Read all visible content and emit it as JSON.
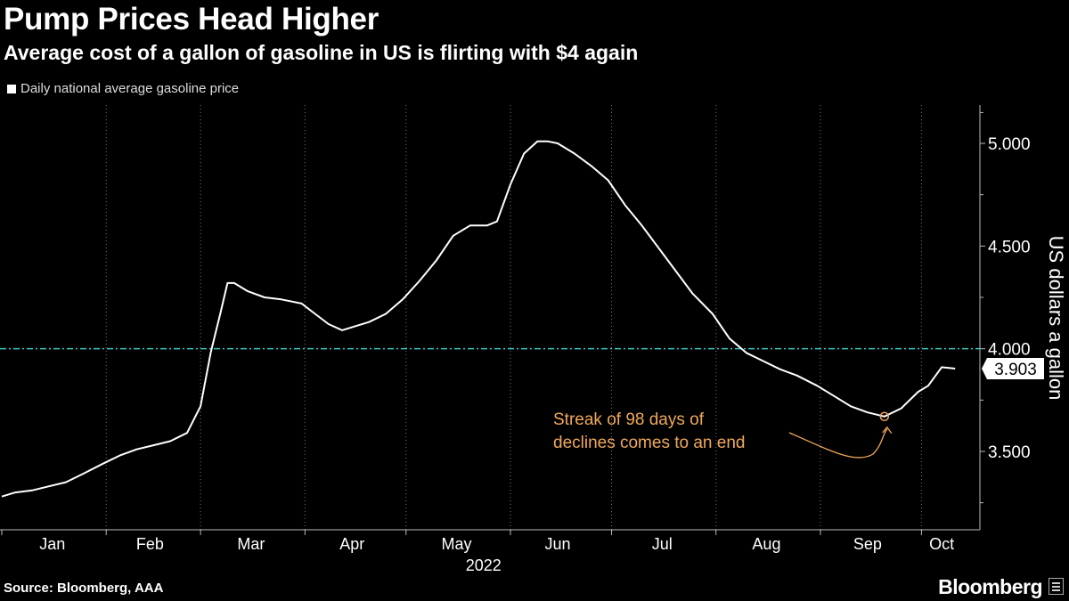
{
  "header": {
    "title": "Pump Prices Head Higher",
    "subtitle": "Average cost of a gallon of gasoline in US is flirting with $4 again"
  },
  "footer": {
    "source": "Source: Bloomberg, AAA",
    "brand": "Bloomberg"
  },
  "colors": {
    "background": "#000000",
    "line": "#ffffff",
    "reference_line": "#39c6c0",
    "annotation": "#f0a85a",
    "grid": "#777777"
  },
  "chart_data": {
    "type": "line",
    "title": "Pump Prices Head Higher",
    "subtitle": "Average cost of a gallon of gasoline in US is flirting with $4 again",
    "ylabel": "US dollars a gallon",
    "xlabel": "2022",
    "ylim": [
      3.25,
      5.2
    ],
    "y_ticks": [
      "5.000",
      "4.500",
      "4.000",
      "3.500"
    ],
    "y_tick_values": [
      5.0,
      4.5,
      4.0,
      3.5
    ],
    "x_tick_labels": [
      "Jan",
      "Feb",
      "Mar",
      "Apr",
      "May",
      "Jun",
      "Jul",
      "Aug",
      "Sep",
      "Oct"
    ],
    "x_range": [
      "2022-01-01",
      "2022-10-12"
    ],
    "grid": "vertical dotted at month boundaries",
    "legend": "top-left",
    "series": [
      {
        "name": "Daily national average gasoline price",
        "x": [
          "2022-01-01",
          "2022-01-05",
          "2022-01-10",
          "2022-01-15",
          "2022-01-20",
          "2022-01-25",
          "2022-01-31",
          "2022-02-05",
          "2022-02-10",
          "2022-02-15",
          "2022-02-20",
          "2022-02-25",
          "2022-03-01",
          "2022-03-04",
          "2022-03-07",
          "2022-03-09",
          "2022-03-11",
          "2022-03-15",
          "2022-03-20",
          "2022-03-25",
          "2022-03-31",
          "2022-04-04",
          "2022-04-08",
          "2022-04-12",
          "2022-04-16",
          "2022-04-20",
          "2022-04-25",
          "2022-04-30",
          "2022-05-05",
          "2022-05-10",
          "2022-05-15",
          "2022-05-20",
          "2022-05-25",
          "2022-05-28",
          "2022-06-01",
          "2022-06-05",
          "2022-06-09",
          "2022-06-12",
          "2022-06-15",
          "2022-06-20",
          "2022-06-25",
          "2022-06-30",
          "2022-07-05",
          "2022-07-10",
          "2022-07-15",
          "2022-07-20",
          "2022-07-25",
          "2022-07-31",
          "2022-08-05",
          "2022-08-10",
          "2022-08-15",
          "2022-08-20",
          "2022-08-25",
          "2022-08-31",
          "2022-09-05",
          "2022-09-10",
          "2022-09-15",
          "2022-09-20",
          "2022-09-25",
          "2022-09-30",
          "2022-10-03",
          "2022-10-07",
          "2022-10-11"
        ],
        "y": [
          3.28,
          3.3,
          3.31,
          3.33,
          3.35,
          3.39,
          3.44,
          3.48,
          3.51,
          3.53,
          3.55,
          3.59,
          3.72,
          3.98,
          4.18,
          4.32,
          4.32,
          4.28,
          4.25,
          4.24,
          4.22,
          4.17,
          4.12,
          4.09,
          4.11,
          4.13,
          4.17,
          4.24,
          4.33,
          4.43,
          4.55,
          4.6,
          4.6,
          4.62,
          4.8,
          4.95,
          5.01,
          5.01,
          5.0,
          4.95,
          4.89,
          4.82,
          4.7,
          4.6,
          4.49,
          4.38,
          4.27,
          4.17,
          4.05,
          3.98,
          3.94,
          3.9,
          3.87,
          3.82,
          3.77,
          3.72,
          3.69,
          3.67,
          3.71,
          3.79,
          3.82,
          3.91,
          3.903
        ]
      }
    ],
    "reference_line": {
      "y": 4.0,
      "style": "dash-dot"
    },
    "last_value_label": "3.903",
    "annotation": {
      "text_line1": "Streak of 98 days of",
      "text_line2": "declines comes to an end",
      "x": "2022-09-20",
      "y": 3.67
    }
  }
}
